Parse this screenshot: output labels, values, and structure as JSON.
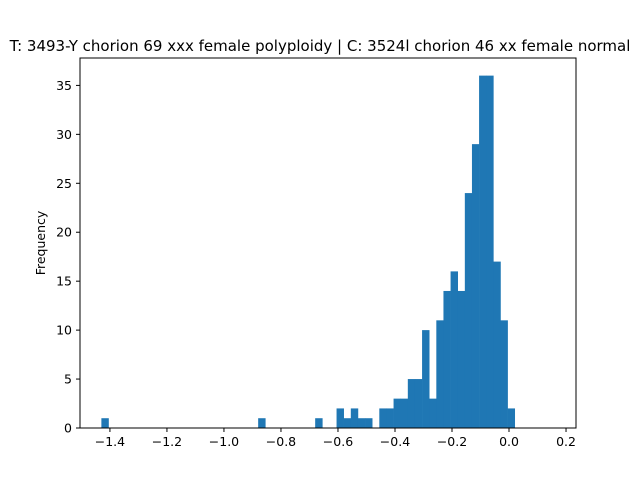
{
  "chart_data": {
    "type": "bar",
    "title": "T: 3493-Y chorion 69 xxx female polyploidy | C: 3524l chorion 46 xx female normal",
    "xlabel": "",
    "ylabel": "Frequency",
    "xlim": [
      -1.505,
      0.235
    ],
    "ylim": [
      0,
      37.8
    ],
    "grid": false,
    "bar_color": "#1f77b4",
    "x_ticks": [
      -1.4,
      -1.2,
      -1.0,
      -0.8,
      -0.6,
      -0.4,
      -0.2,
      0.0,
      0.2
    ],
    "x_tick_labels": [
      "−1.4",
      "−1.2",
      "−1.0",
      "−0.8",
      "−0.6",
      "−0.4",
      "−0.2",
      "0.0",
      "0.2"
    ],
    "y_ticks": [
      0,
      5,
      10,
      15,
      20,
      25,
      30,
      35
    ],
    "y_tick_labels": [
      "0",
      "5",
      "10",
      "15",
      "20",
      "25",
      "30",
      "35"
    ],
    "bin_start": -1.43,
    "bin_width": 0.025,
    "counts": [
      1,
      0,
      0,
      0,
      0,
      0,
      0,
      0,
      0,
      0,
      0,
      0,
      0,
      0,
      0,
      0,
      0,
      0,
      0,
      0,
      0,
      0,
      1,
      0,
      0,
      0,
      0,
      0,
      0,
      0,
      1,
      0,
      0,
      2,
      1,
      2,
      1,
      1,
      0,
      2,
      2,
      3,
      3,
      5,
      5,
      10,
      3,
      11,
      14,
      16,
      14,
      24,
      29,
      36,
      36,
      17,
      11,
      2
    ]
  }
}
